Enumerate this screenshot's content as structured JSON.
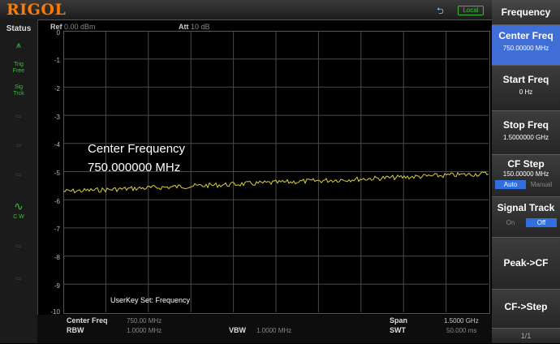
{
  "brand": "RIGOL",
  "header": {
    "status_badge": "Local"
  },
  "status": {
    "title": "Status",
    "items": [
      {
        "label": "Trig\nFree",
        "dim": false
      },
      {
        "label": "Sig\nTrck",
        "dim": false
      },
      {
        "label": "C W",
        "dim": false
      }
    ]
  },
  "display": {
    "ref_label": "Ref",
    "ref_value": "0.00 dBm",
    "att_label": "Att",
    "att_value": "10 dB",
    "y_scale_labels": [
      "0",
      "-1",
      "-2",
      "-3",
      "-4",
      "-5",
      "-6",
      "-7",
      "-8",
      "-9",
      "-10"
    ],
    "overlay_title": "Center Frequency",
    "overlay_value": "750.000000 MHz",
    "userkey_text": "UserKey Set:  Frequency"
  },
  "bottom": {
    "center_freq_label": "Center Freq",
    "center_freq_value": "750.00 MHz",
    "rbw_label": "RBW",
    "rbw_value": "1.0000 MHz",
    "vbw_label": "VBW",
    "vbw_value": "1.0000 MHz",
    "span_label": "Span",
    "span_value": "1.5000 GHz",
    "swt_label": "SWT",
    "swt_value": "50.000 ms"
  },
  "menu": {
    "title": "Frequency",
    "center_freq": {
      "label": "Center Freq",
      "value": "750.00000 MHz"
    },
    "start_freq": {
      "label": "Start Freq",
      "value": "0 Hz"
    },
    "stop_freq": {
      "label": "Stop Freq",
      "value": "1.5000000 GHz"
    },
    "cf_step": {
      "label": "CF Step",
      "value": "150.00000 MHz",
      "opt_on": "Auto",
      "opt_off": "Manual"
    },
    "signal_track": {
      "label": "Signal Track",
      "opt_on": "On",
      "opt_off": "Off"
    },
    "peak_cf": {
      "label": "Peak->CF"
    },
    "cf_step_btn": {
      "label": "CF->Step"
    },
    "page": "1/1"
  },
  "colors": {
    "trace": "#d8d040",
    "menu_active": "#3f6fd6",
    "brand": "#ff7a00"
  }
}
